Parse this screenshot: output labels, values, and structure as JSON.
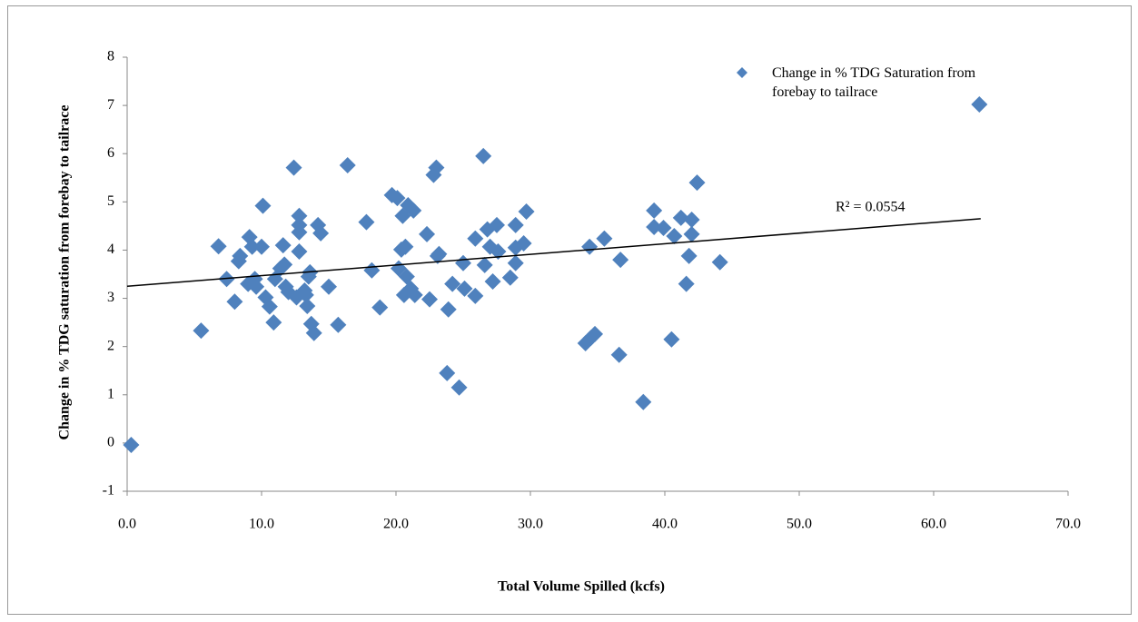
{
  "chart_data": {
    "type": "scatter",
    "x_label": "Total Volume Spilled (kcfs)",
    "y_label": "Change in % TDG saturation from forebay to tailrace",
    "xlim": [
      0,
      70
    ],
    "xticks": [
      {
        "value": 0,
        "label": "0.0"
      },
      {
        "value": 10,
        "label": "10.0"
      },
      {
        "value": 20,
        "label": "20.0"
      },
      {
        "value": 30,
        "label": "30.0"
      },
      {
        "value": 40,
        "label": "40.0"
      },
      {
        "value": 50,
        "label": "50.0"
      },
      {
        "value": 60,
        "label": "60.0"
      },
      {
        "value": 70,
        "label": "70.0"
      }
    ],
    "ylim": [
      -1,
      8
    ],
    "yticks": [
      -1,
      0,
      1,
      2,
      3,
      4,
      5,
      6,
      7,
      8
    ],
    "legend": "top-right",
    "series": [
      {
        "name": "Change in % TDG Saturation from forebay to tailrace",
        "color": "#4f81bd",
        "x": [
          0.3,
          5.5,
          6.8,
          7.4,
          8.0,
          8.3,
          8.4,
          9.0,
          9.1,
          9.3,
          9.5,
          9.6,
          10.0,
          10.1,
          10.3,
          10.6,
          10.9,
          11.0,
          11.4,
          11.6,
          11.7,
          11.8,
          12.0,
          12.4,
          12.6,
          12.8,
          12.8,
          12.8,
          12.8,
          13.2,
          13.3,
          13.4,
          13.5,
          13.6,
          13.7,
          13.9,
          14.2,
          14.4,
          15.0,
          15.7,
          16.4,
          17.8,
          18.2,
          18.8,
          19.7,
          20.1,
          20.2,
          20.4,
          20.5,
          20.6,
          20.7,
          20.8,
          20.9,
          21.1,
          21.3,
          21.4,
          22.3,
          22.5,
          22.8,
          23.0,
          23.1,
          23.2,
          23.8,
          23.9,
          24.2,
          24.7,
          25.0,
          25.1,
          25.9,
          25.9,
          26.5,
          26.6,
          26.8,
          27.0,
          27.2,
          27.5,
          27.6,
          28.5,
          28.9,
          28.9,
          28.9,
          29.5,
          29.7,
          34.1,
          34.4,
          34.5,
          34.8,
          35.5,
          36.6,
          36.7,
          38.4,
          39.2,
          39.2,
          39.9,
          40.5,
          40.7,
          41.2,
          41.6,
          41.8,
          42.0,
          42.0,
          42.4,
          44.1,
          63.4
        ],
        "values": [
          -0.04,
          2.33,
          4.08,
          3.4,
          2.93,
          3.77,
          3.88,
          3.3,
          4.27,
          4.07,
          3.4,
          3.24,
          4.07,
          4.92,
          3.02,
          2.83,
          2.5,
          3.4,
          3.62,
          4.1,
          3.7,
          3.24,
          3.13,
          5.71,
          3.02,
          4.71,
          4.52,
          4.37,
          3.97,
          3.16,
          3.07,
          2.84,
          3.45,
          3.54,
          2.47,
          2.28,
          4.52,
          4.35,
          3.24,
          2.45,
          5.76,
          4.58,
          3.58,
          2.81,
          5.14,
          5.08,
          3.62,
          4.01,
          4.71,
          3.07,
          4.07,
          3.45,
          4.93,
          3.2,
          4.82,
          3.07,
          4.33,
          2.98,
          5.56,
          5.71,
          3.88,
          3.92,
          1.45,
          2.77,
          3.3,
          1.15,
          3.73,
          3.2,
          4.24,
          3.05,
          5.95,
          3.69,
          4.43,
          4.07,
          3.35,
          4.52,
          3.97,
          3.43,
          3.73,
          4.05,
          4.52,
          4.14,
          4.8,
          2.07,
          4.07,
          2.18,
          2.26,
          4.24,
          1.83,
          3.8,
          0.85,
          4.82,
          4.48,
          4.46,
          2.15,
          4.29,
          4.67,
          3.3,
          3.88,
          4.63,
          4.33,
          5.4,
          3.75,
          7.02
        ]
      }
    ],
    "trendline": {
      "x": [
        0,
        63.5
      ],
      "y": [
        3.25,
        4.65
      ],
      "color": "#000000"
    },
    "r_squared_label": "R² = 0.0554"
  }
}
